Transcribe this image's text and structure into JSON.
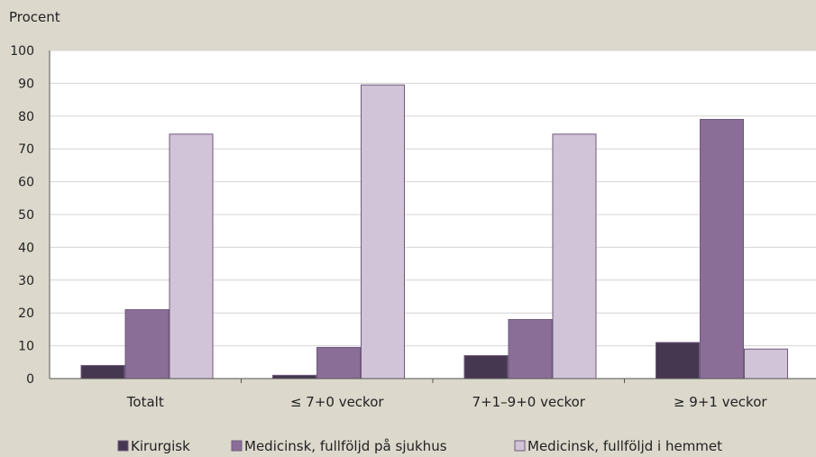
{
  "chart_data": {
    "type": "bar",
    "ylabel": "Procent",
    "ylim": [
      0,
      100
    ],
    "yticks": [
      0,
      10,
      20,
      30,
      40,
      50,
      60,
      70,
      80,
      90,
      100
    ],
    "categories": [
      "Totalt",
      "≤ 7+0 veckor",
      "7+1–9+0 veckor",
      "≥ 9+1 veckor"
    ],
    "series": [
      {
        "name": "Kirurgisk",
        "color": "#463750",
        "values": [
          4,
          1,
          7,
          11
        ]
      },
      {
        "name": "Medicinsk, fullföljd på sjukhus",
        "color": "#8b6e98",
        "values": [
          21,
          9.5,
          18,
          79
        ]
      },
      {
        "name": "Medicinsk, fullföljd i hemmet",
        "color": "#d2c4d8",
        "values": [
          74.5,
          89.5,
          74.5,
          9
        ]
      }
    ],
    "grid": true,
    "legend": "bottom"
  }
}
